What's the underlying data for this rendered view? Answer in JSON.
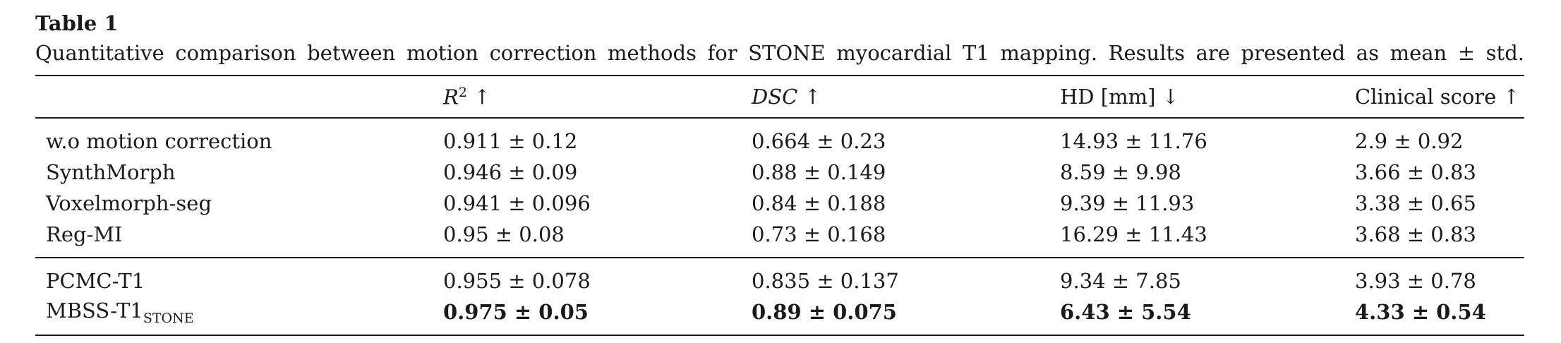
{
  "table": {
    "label": "Table 1",
    "caption": "Quantitative comparison between motion correction methods for STONE myocardial T1 mapping. Results are presented as mean ± std.",
    "headers": {
      "r2_base": "R",
      "r2_sup": "2",
      "r2_arrow": "↑",
      "dsc_base": "DSC",
      "dsc_arrow": "↑",
      "hd": "HD [mm] ↓",
      "clinical": "Clinical score ↑"
    },
    "rows_group1": [
      {
        "method": "w.o motion correction",
        "r2": "0.911 ± 0.12",
        "dsc": "0.664 ± 0.23",
        "hd": "14.93 ± 11.76",
        "clinical": "2.9 ± 0.92"
      },
      {
        "method": "SynthMorph",
        "r2": "0.946 ± 0.09",
        "dsc": "0.88 ± 0.149",
        "hd": "8.59 ± 9.98",
        "clinical": "3.66 ± 0.83"
      },
      {
        "method": "Voxelmorph-seg",
        "r2": "0.941 ± 0.096",
        "dsc": "0.84 ± 0.188",
        "hd": "9.39 ± 11.93",
        "clinical": "3.38 ± 0.65"
      },
      {
        "method": "Reg-MI",
        "r2": "0.95 ± 0.08",
        "dsc": "0.73 ± 0.168",
        "hd": "16.29 ± 11.43",
        "clinical": "3.68 ± 0.83"
      }
    ],
    "rows_group2": [
      {
        "method": "PCMC-T1",
        "r2": "0.955 ± 0.078",
        "dsc": "0.835 ± 0.137",
        "hd": "9.34 ± 7.85",
        "clinical": "3.93 ± 0.78"
      },
      {
        "method_base": "MBSS-T1",
        "method_sub": "STONE",
        "r2": "0.975 ± 0.05",
        "dsc": "0.89 ± 0.075",
        "hd": "6.43 ± 5.54",
        "clinical": "4.33 ± 0.54"
      }
    ]
  }
}
